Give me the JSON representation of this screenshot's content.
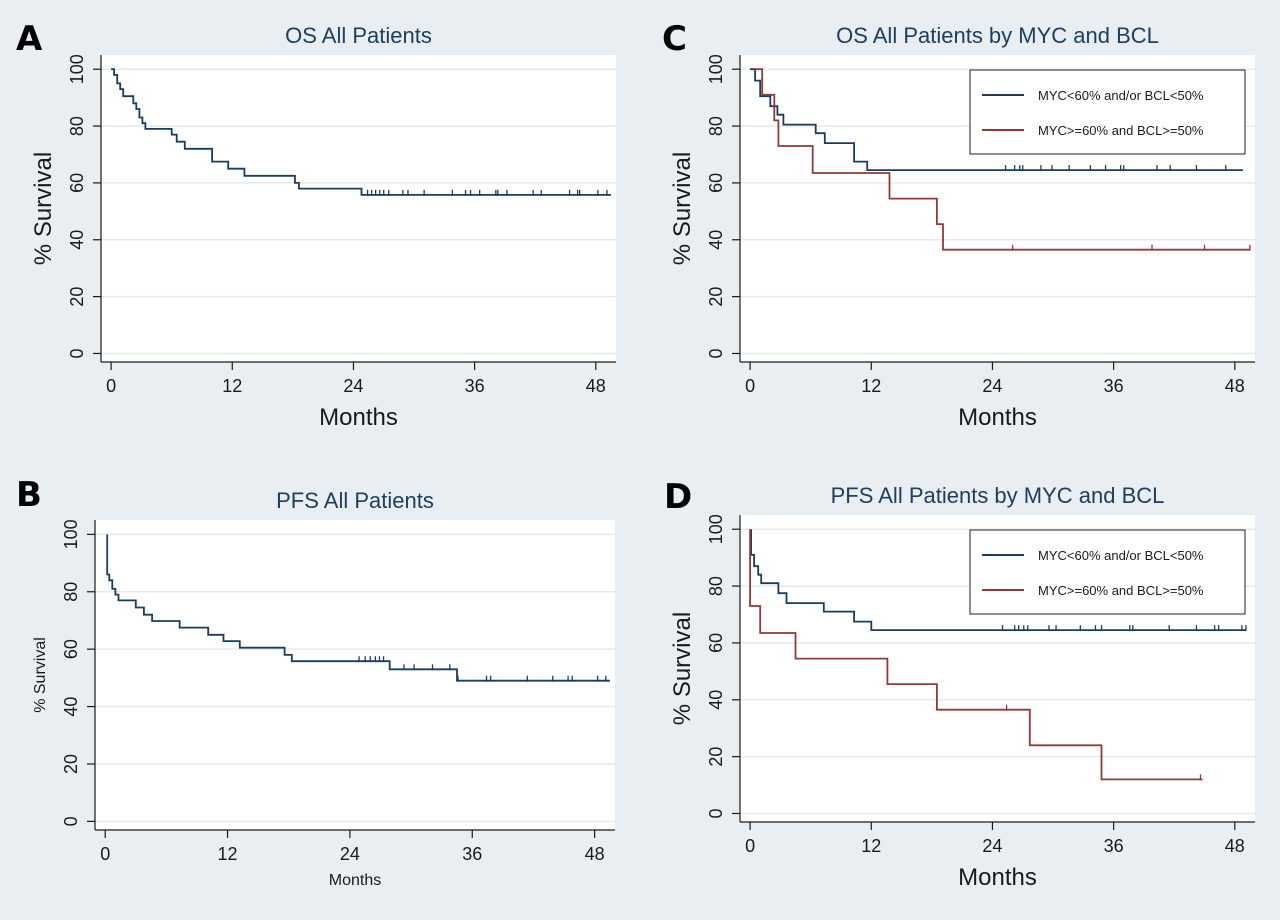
{
  "colors": {
    "outer_bg": "#e8eef2",
    "plot_bg": "#ffffff",
    "grid": "#e6eaec",
    "axis": "#1a1a1a",
    "text": "#1a1a1a",
    "title_text": "#1e3f60",
    "series_blue": "#1b3c5e",
    "series_red": "#943838"
  },
  "chart_data": [
    {
      "panel_label": "A",
      "type": "line",
      "title": "OS All Patients",
      "xlabel": "Months",
      "ylabel": "% Survival",
      "xticks": [
        0,
        12,
        24,
        36,
        48
      ],
      "yticks": [
        0,
        20,
        40,
        60,
        80,
        100
      ],
      "xlim": [
        -1,
        50
      ],
      "ylim": [
        -3,
        105
      ],
      "grid": true,
      "legend": null,
      "series": [
        {
          "color": "#1b3c5e",
          "points": [
            [
              0,
              100
            ],
            [
              0.3,
              100
            ],
            [
              0.3,
              98
            ],
            [
              0.6,
              98
            ],
            [
              0.6,
              95
            ],
            [
              0.9,
              95
            ],
            [
              0.9,
              93
            ],
            [
              1.2,
              93
            ],
            [
              1.2,
              90.5
            ],
            [
              2.2,
              90.5
            ],
            [
              2.2,
              88
            ],
            [
              2.5,
              88
            ],
            [
              2.5,
              86
            ],
            [
              2.8,
              86
            ],
            [
              2.8,
              83
            ],
            [
              3.1,
              83
            ],
            [
              3.1,
              81
            ],
            [
              3.4,
              81
            ],
            [
              3.4,
              79
            ],
            [
              6,
              79
            ],
            [
              6,
              77
            ],
            [
              6.5,
              77
            ],
            [
              6.5,
              74.5
            ],
            [
              7.3,
              74.5
            ],
            [
              7.3,
              72
            ],
            [
              10,
              72
            ],
            [
              10,
              67.5
            ],
            [
              11.6,
              67.5
            ],
            [
              11.6,
              65
            ],
            [
              13.2,
              65
            ],
            [
              13.2,
              62.5
            ],
            [
              18.2,
              62.5
            ],
            [
              18.2,
              60
            ],
            [
              18.6,
              60
            ],
            [
              18.6,
              58
            ],
            [
              24.8,
              58
            ],
            [
              24.8,
              55.8
            ],
            [
              49.5,
              55.8
            ]
          ],
          "censor_x": [
            25.4,
            25.8,
            26.2,
            26.6,
            27.0,
            27.5,
            28.9,
            29.4,
            31.0,
            33.8,
            35.1,
            35.6,
            36.5,
            38.1,
            38.3,
            39.2,
            41.8,
            42.6,
            45.4,
            46.2,
            46.4,
            48.2,
            49.1
          ]
        }
      ]
    },
    {
      "panel_label": "B",
      "type": "line",
      "title": "PFS All Patients",
      "xlabel": "Months",
      "ylabel": "% Survival",
      "xticks": [
        0,
        12,
        24,
        36,
        48
      ],
      "yticks": [
        0,
        20,
        40,
        60,
        80,
        100
      ],
      "xlim": [
        -1,
        50
      ],
      "ylim": [
        -3,
        105
      ],
      "grid": true,
      "legend": null,
      "series": [
        {
          "color": "#1b3c5e",
          "points": [
            [
              0.2,
              100
            ],
            [
              0.2,
              86
            ],
            [
              0.4,
              86
            ],
            [
              0.4,
              84
            ],
            [
              0.7,
              84
            ],
            [
              0.7,
              81
            ],
            [
              1,
              81
            ],
            [
              1,
              79
            ],
            [
              1.3,
              79
            ],
            [
              1.3,
              77
            ],
            [
              3,
              77
            ],
            [
              3,
              74.5
            ],
            [
              3.8,
              74.5
            ],
            [
              3.8,
              72
            ],
            [
              4.6,
              72
            ],
            [
              4.6,
              69.8
            ],
            [
              7.3,
              69.8
            ],
            [
              7.3,
              67.5
            ],
            [
              10.1,
              67.5
            ],
            [
              10.1,
              65
            ],
            [
              11.6,
              65
            ],
            [
              11.6,
              62.8
            ],
            [
              13.2,
              62.8
            ],
            [
              13.2,
              60.5
            ],
            [
              17.6,
              60.5
            ],
            [
              17.6,
              58
            ],
            [
              18.3,
              58
            ],
            [
              18.3,
              55.8
            ],
            [
              27.9,
              55.8
            ],
            [
              27.9,
              53
            ],
            [
              34.5,
              53
            ],
            [
              34.5,
              49
            ],
            [
              49.5,
              49
            ]
          ],
          "censor_x": [
            24.9,
            25.5,
            26.0,
            26.5,
            26.9,
            27.3,
            29.3,
            30.3,
            32.1,
            33.8,
            34.6,
            37.4,
            37.8,
            41.4,
            43.9,
            45.4,
            45.8,
            48.3,
            49.1
          ]
        }
      ]
    },
    {
      "panel_label": "C",
      "type": "line",
      "title": "OS All Patients by MYC and BCL",
      "xlabel": "Months",
      "ylabel": "% Survival",
      "xticks": [
        0,
        12,
        24,
        36,
        48
      ],
      "yticks": [
        0,
        20,
        40,
        60,
        80,
        100
      ],
      "xlim": [
        -1,
        50
      ],
      "ylim": [
        -3,
        105
      ],
      "grid": true,
      "legend": {
        "placement": "top-right"
      },
      "series": [
        {
          "name": "MYC<60% and/or BCL<50%",
          "color": "#1b3c5e",
          "points": [
            [
              0,
              100
            ],
            [
              0.5,
              100
            ],
            [
              0.5,
              96
            ],
            [
              1,
              96
            ],
            [
              1,
              90.5
            ],
            [
              2,
              90.5
            ],
            [
              2,
              87
            ],
            [
              2.7,
              87
            ],
            [
              2.7,
              84
            ],
            [
              3.3,
              84
            ],
            [
              3.3,
              80.5
            ],
            [
              6.5,
              80.5
            ],
            [
              6.5,
              77.5
            ],
            [
              7.4,
              77.5
            ],
            [
              7.4,
              74
            ],
            [
              10.3,
              74
            ],
            [
              10.3,
              67.5
            ],
            [
              11.6,
              67.5
            ],
            [
              11.6,
              64.5
            ],
            [
              48.8,
              64.5
            ]
          ],
          "censor_x": [
            25.3,
            26.2,
            26.7,
            27.0,
            28.8,
            29.9,
            31.6,
            33.7,
            35.2,
            36.7,
            37.0,
            40.3,
            41.6,
            44.2,
            47.1
          ]
        },
        {
          "name": "MYC>=60% and BCL>=50%",
          "color": "#943838",
          "points": [
            [
              0.3,
              100
            ],
            [
              1.2,
              100
            ],
            [
              1.2,
              91
            ],
            [
              2.4,
              91
            ],
            [
              2.4,
              82
            ],
            [
              2.8,
              82
            ],
            [
              2.8,
              73
            ],
            [
              6.2,
              73
            ],
            [
              6.2,
              63.5
            ],
            [
              13.8,
              63.5
            ],
            [
              13.8,
              54.5
            ],
            [
              18.5,
              54.5
            ],
            [
              18.5,
              45.5
            ],
            [
              19.1,
              45.5
            ],
            [
              19.1,
              36.5
            ],
            [
              49.5,
              36.5
            ]
          ],
          "censor_x": [
            26.0,
            39.8,
            45.0,
            49.5
          ]
        }
      ]
    },
    {
      "panel_label": "D",
      "type": "line",
      "title": "PFS All Patients by MYC and BCL",
      "xlabel": "Months",
      "ylabel": "% Survival",
      "xticks": [
        0,
        12,
        24,
        36,
        48
      ],
      "yticks": [
        0,
        20,
        40,
        60,
        80,
        100
      ],
      "xlim": [
        -1,
        50
      ],
      "ylim": [
        -3,
        105
      ],
      "grid": true,
      "legend": {
        "placement": "top-right"
      },
      "series": [
        {
          "name": "MYC<60% and/or BCL<50%",
          "color": "#1b3c5e",
          "points": [
            [
              0.1,
              100
            ],
            [
              0.1,
              91
            ],
            [
              0.4,
              91
            ],
            [
              0.4,
              87
            ],
            [
              0.8,
              87
            ],
            [
              0.8,
              84
            ],
            [
              1.1,
              84
            ],
            [
              1.1,
              81
            ],
            [
              2.8,
              81
            ],
            [
              2.8,
              77.5
            ],
            [
              3.6,
              77.5
            ],
            [
              3.6,
              74
            ],
            [
              7.3,
              74
            ],
            [
              7.3,
              71
            ],
            [
              10.3,
              71
            ],
            [
              10.3,
              67.5
            ],
            [
              12,
              67.5
            ],
            [
              12,
              64.5
            ],
            [
              49.1,
              64.5
            ]
          ],
          "censor_x": [
            25.0,
            26.2,
            26.6,
            27.1,
            27.5,
            29.6,
            30.3,
            32.7,
            34.2,
            34.8,
            37.6,
            37.9,
            41.5,
            44.2,
            46.0,
            46.4,
            48.7,
            49.1
          ]
        },
        {
          "name": "MYC>=60% and BCL>=50%",
          "color": "#943838",
          "points": [
            [
              0,
              100
            ],
            [
              0,
              73
            ],
            [
              1,
              73
            ],
            [
              1,
              63.5
            ],
            [
              4.5,
              63.5
            ],
            [
              4.5,
              54.5
            ],
            [
              13.6,
              54.5
            ],
            [
              13.6,
              45.5
            ],
            [
              18.5,
              45.5
            ],
            [
              18.5,
              36.5
            ],
            [
              27.7,
              36.5
            ],
            [
              27.7,
              24
            ],
            [
              34.8,
              24
            ],
            [
              34.8,
              12
            ],
            [
              44.8,
              12
            ]
          ],
          "censor_x": [
            25.4,
            44.6
          ]
        }
      ]
    }
  ]
}
